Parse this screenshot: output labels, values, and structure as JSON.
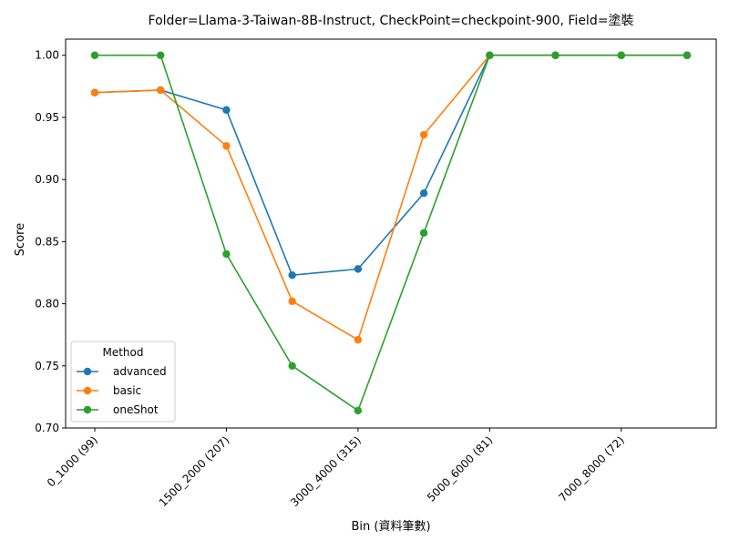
{
  "chart_data": {
    "type": "line",
    "title": "Folder=Llama-3-Taiwan-8B-Instruct, CheckPoint=checkpoint-900, Field=塗裝",
    "xlabel": "Bin (資料筆數)",
    "ylabel": "Score",
    "categories": [
      "0_1000 (99)",
      "",
      "1500_2000 (207)",
      "",
      "3000_4000 (315)",
      "",
      "5000_6000 (81)",
      "",
      "7000_8000 (72)",
      ""
    ],
    "tick_labels": [
      "0_1000 (99)",
      "1500_2000 (207)",
      "3000_4000 (315)",
      "5000_6000 (81)",
      "7000_8000 (72)"
    ],
    "ylim": [
      0.7,
      1.013
    ],
    "yticks": [
      "0.70",
      "0.75",
      "0.80",
      "0.85",
      "0.90",
      "0.95",
      "1.00"
    ],
    "legend": {
      "title": "Method",
      "position": "lower-left"
    },
    "grid": false,
    "series": [
      {
        "name": "advanced",
        "color": "#1f77b4",
        "values": [
          0.97,
          0.972,
          0.956,
          0.823,
          0.828,
          0.889,
          1.0,
          1.0,
          1.0,
          1.0
        ]
      },
      {
        "name": "basic",
        "color": "#ff7f0e",
        "values": [
          0.97,
          0.972,
          0.927,
          0.802,
          0.771,
          0.936,
          1.0,
          1.0,
          1.0,
          1.0
        ]
      },
      {
        "name": "oneShot",
        "color": "#2ca02c",
        "values": [
          1.0,
          1.0,
          0.84,
          0.75,
          0.714,
          0.857,
          1.0,
          1.0,
          1.0,
          1.0
        ]
      }
    ]
  }
}
